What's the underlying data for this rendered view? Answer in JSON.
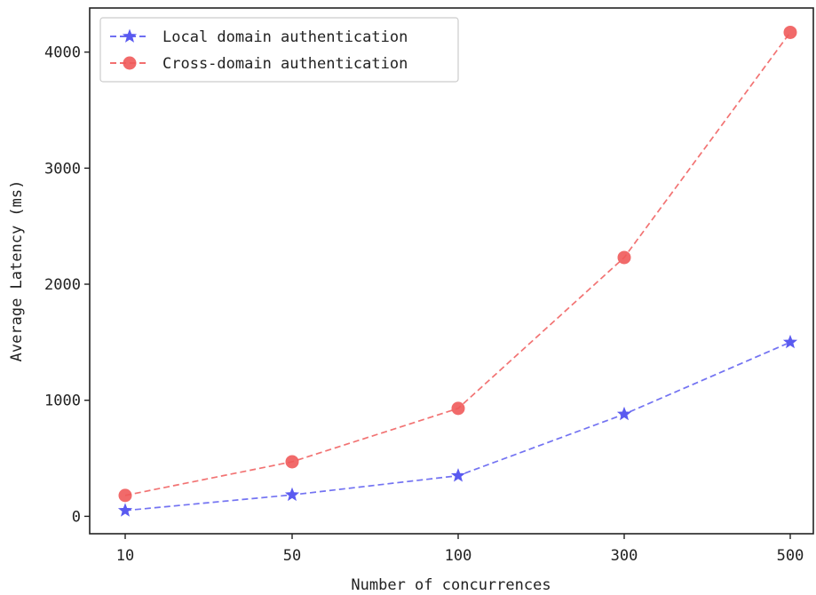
{
  "chart_data": {
    "type": "line",
    "categories": [
      "10",
      "50",
      "100",
      "300",
      "500"
    ],
    "xlabel": "Number of concurrences",
    "ylabel": "Average Latency (ms)",
    "ylim": [
      -150,
      4380
    ],
    "yticks": [
      0,
      1000,
      2000,
      3000,
      4000
    ],
    "grid": false,
    "legend_position": "top-left",
    "series": [
      {
        "name": "Local domain authentication",
        "values": [
          50,
          185,
          350,
          880,
          1500
        ],
        "color": "#5a5af0",
        "marker": "star",
        "line_style": "dashed"
      },
      {
        "name": "Cross-domain authentication",
        "values": [
          180,
          470,
          930,
          2230,
          4170
        ],
        "color": "#f05a5a",
        "marker": "circle",
        "line_style": "dashed"
      }
    ]
  }
}
